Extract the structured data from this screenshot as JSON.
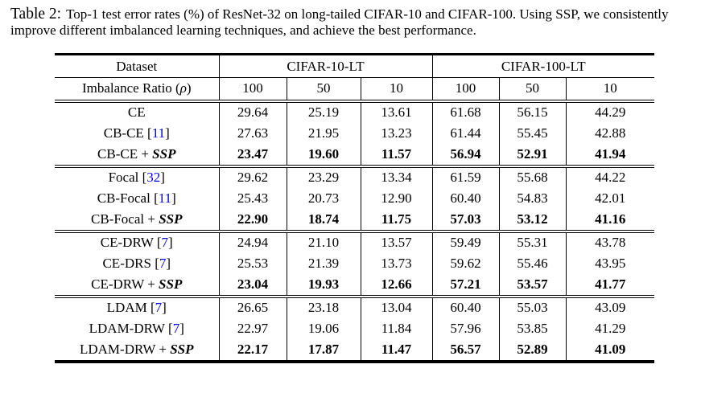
{
  "caption": {
    "label": "Table 2:",
    "text": "Top-1 test error rates (%) of ResNet-32 on long-tailed CIFAR-10 and CIFAR-100. Using SSP, we consistently improve different imbalanced learning techniques, and achieve the best performance."
  },
  "strings": {
    "bracket_open": " [",
    "bracket_close": "]",
    "plus": " + ",
    "ssp": "SSP"
  },
  "colors": {
    "citation_blue": "#0000EE",
    "text": "#000000",
    "background": "#FFFFFF"
  },
  "table": {
    "header": {
      "dataset_label": "Dataset",
      "group1": "CIFAR-10-LT",
      "group2": "CIFAR-100-LT",
      "ratio_pre": "Imbalance Ratio (",
      "rho": "ρ",
      "ratio_post": ")",
      "ratios": [
        "100",
        "50",
        "10",
        "100",
        "50",
        "10"
      ]
    },
    "blocks": [
      {
        "rows": [
          {
            "method": "CE",
            "cite": "",
            "ssp": false,
            "bold": false,
            "values": [
              "29.64",
              "25.19",
              "13.61",
              "61.68",
              "56.15",
              "44.29"
            ]
          },
          {
            "method": "CB-CE",
            "cite": "11",
            "ssp": false,
            "bold": false,
            "values": [
              "27.63",
              "21.95",
              "13.23",
              "61.44",
              "55.45",
              "42.88"
            ]
          },
          {
            "method": "CB-CE",
            "cite": "",
            "ssp": true,
            "bold": true,
            "values": [
              "23.47",
              "19.60",
              "11.57",
              "56.94",
              "52.91",
              "41.94"
            ]
          }
        ]
      },
      {
        "rows": [
          {
            "method": "Focal",
            "cite": "32",
            "ssp": false,
            "bold": false,
            "values": [
              "29.62",
              "23.29",
              "13.34",
              "61.59",
              "55.68",
              "44.22"
            ]
          },
          {
            "method": "CB-Focal",
            "cite": "11",
            "ssp": false,
            "bold": false,
            "values": [
              "25.43",
              "20.73",
              "12.90",
              "60.40",
              "54.83",
              "42.01"
            ]
          },
          {
            "method": "CB-Focal",
            "cite": "",
            "ssp": true,
            "bold": true,
            "values": [
              "22.90",
              "18.74",
              "11.75",
              "57.03",
              "53.12",
              "41.16"
            ]
          }
        ]
      },
      {
        "rows": [
          {
            "method": "CE-DRW",
            "cite": "7",
            "ssp": false,
            "bold": false,
            "values": [
              "24.94",
              "21.10",
              "13.57",
              "59.49",
              "55.31",
              "43.78"
            ]
          },
          {
            "method": "CE-DRS",
            "cite": "7",
            "ssp": false,
            "bold": false,
            "values": [
              "25.53",
              "21.39",
              "13.73",
              "59.62",
              "55.46",
              "43.95"
            ]
          },
          {
            "method": "CE-DRW",
            "cite": "",
            "ssp": true,
            "bold": true,
            "values": [
              "23.04",
              "19.93",
              "12.66",
              "57.21",
              "53.57",
              "41.77"
            ]
          }
        ]
      },
      {
        "rows": [
          {
            "method": "LDAM",
            "cite": "7",
            "ssp": false,
            "bold": false,
            "values": [
              "26.65",
              "23.18",
              "13.04",
              "60.40",
              "55.03",
              "43.09"
            ]
          },
          {
            "method": "LDAM-DRW",
            "cite": "7",
            "ssp": false,
            "bold": false,
            "values": [
              "22.97",
              "19.06",
              "11.84",
              "57.96",
              "53.85",
              "41.29"
            ]
          },
          {
            "method": "LDAM-DRW",
            "cite": "",
            "ssp": true,
            "bold": true,
            "values": [
              "22.17",
              "17.87",
              "11.47",
              "56.57",
              "52.89",
              "41.09"
            ]
          }
        ]
      }
    ]
  }
}
